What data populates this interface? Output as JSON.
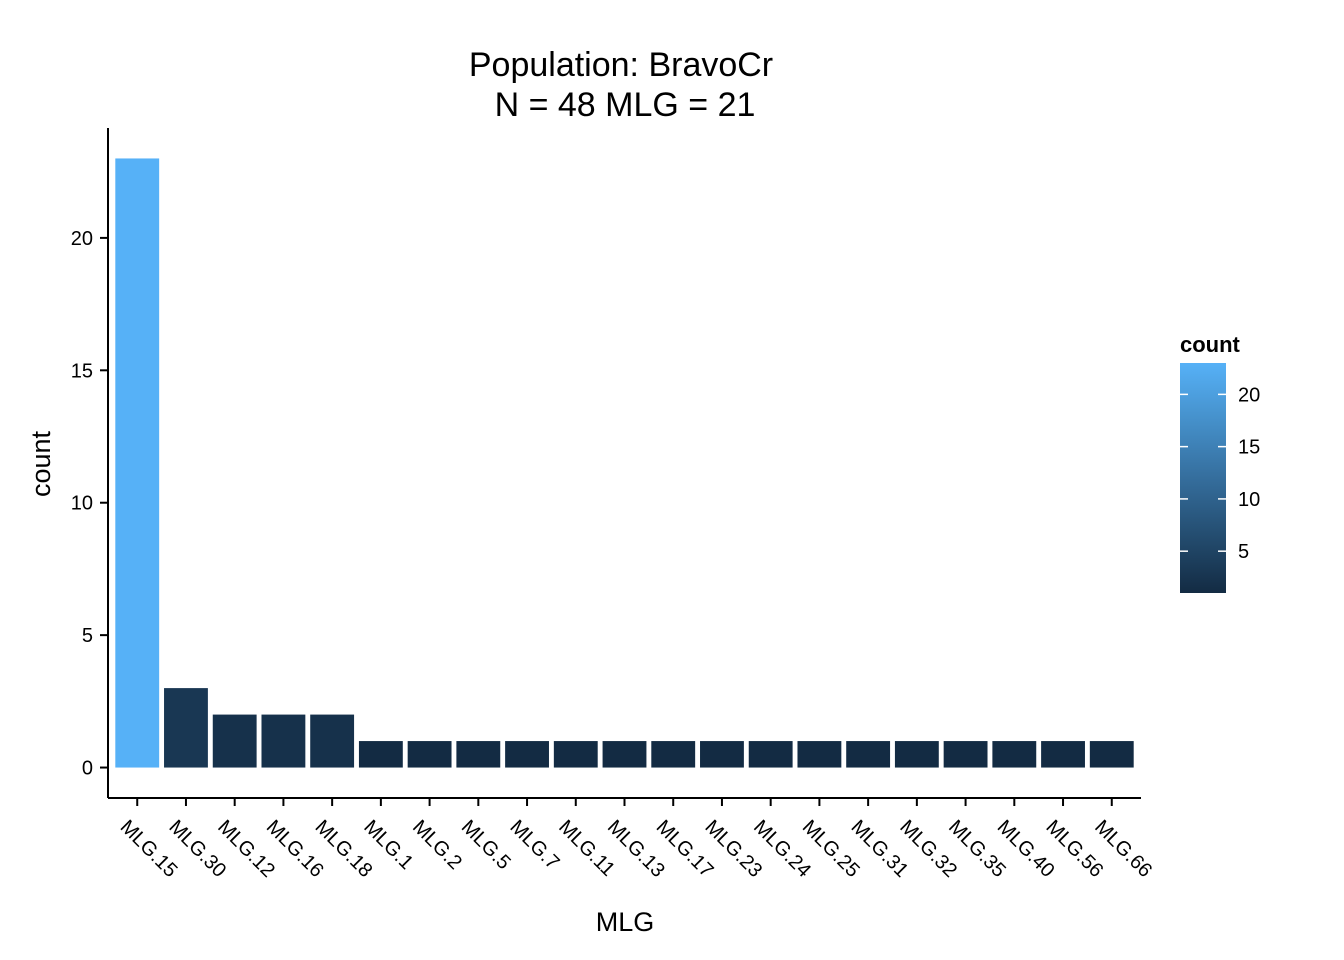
{
  "chart_data": {
    "type": "bar",
    "title": "Population: BravoCr",
    "subtitle": "N = 48 MLG = 21",
    "xlabel": "MLG",
    "ylabel": "count",
    "categories": [
      "MLG.15",
      "MLG.30",
      "MLG.12",
      "MLG.16",
      "MLG.18",
      "MLG.1",
      "MLG.2",
      "MLG.5",
      "MLG.7",
      "MLG.11",
      "MLG.13",
      "MLG.17",
      "MLG.23",
      "MLG.24",
      "MLG.25",
      "MLG.31",
      "MLG.32",
      "MLG.35",
      "MLG.40",
      "MLG.56",
      "MLG.66"
    ],
    "values": [
      23,
      3,
      2,
      2,
      2,
      1,
      1,
      1,
      1,
      1,
      1,
      1,
      1,
      1,
      1,
      1,
      1,
      1,
      1,
      1,
      1
    ],
    "y_ticks": [
      0,
      5,
      10,
      15,
      20
    ],
    "ylim": [
      -1.15,
      24.15
    ],
    "grid": false,
    "legend": {
      "title": "count",
      "placement": "right",
      "ticks": [
        5,
        10,
        15,
        20
      ],
      "range": [
        1,
        23
      ],
      "color_low": "#132B43",
      "color_high": "#56B1F7"
    }
  }
}
